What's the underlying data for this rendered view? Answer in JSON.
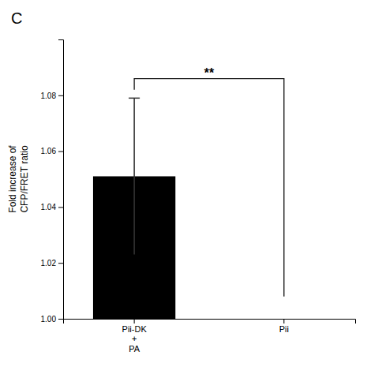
{
  "chart_data": {
    "type": "bar",
    "title": "C",
    "ylabel": "Fold increase of\nCFP/FRET ratio",
    "categories": [
      "Pii-DK\n+\nPA",
      "Pii"
    ],
    "values": [
      1.051,
      null
    ],
    "errors": [
      0.028,
      null
    ],
    "color": "#000000",
    "ylim": [
      1.0,
      1.1
    ],
    "yticks": [
      {
        "value": 1.0,
        "label": "1.00"
      },
      {
        "value": 1.02,
        "label": "1.02"
      },
      {
        "value": 1.04,
        "label": "1.04"
      },
      {
        "value": 1.06,
        "label": "1.06"
      },
      {
        "value": 1.08,
        "label": "1.08"
      }
    ],
    "significance": {
      "text": "**",
      "y": 1.086,
      "left_y": 1.082,
      "right_y": 1.008
    },
    "grid": false
  }
}
